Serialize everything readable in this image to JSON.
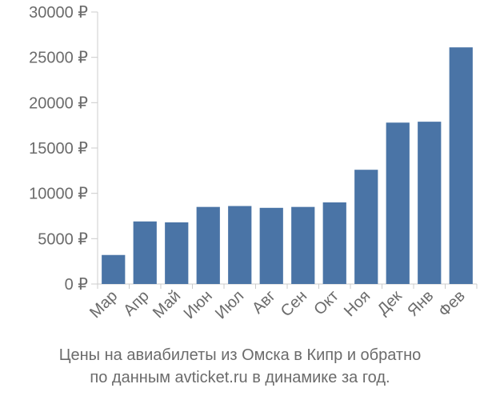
{
  "chart_data": {
    "type": "bar",
    "categories": [
      "Мар",
      "Апр",
      "Май",
      "Июн",
      "Июл",
      "Авг",
      "Сен",
      "Окт",
      "Ноя",
      "Дек",
      "Янв",
      "Фев"
    ],
    "values": [
      3200,
      6900,
      6800,
      8500,
      8600,
      8400,
      8500,
      9000,
      12600,
      17800,
      17900,
      26100
    ],
    "y_ticks": [
      "0 ₽",
      "5000 ₽",
      "10000 ₽",
      "15000 ₽",
      "20000 ₽",
      "25000 ₽",
      "30000 ₽"
    ],
    "ylim": [
      0,
      30000
    ],
    "grid": false,
    "bar_color": "#4a74a6",
    "axis_color": "#cccccc",
    "text_color": "#6b6b6b"
  },
  "caption": {
    "line1": "Цены на авиабилеты из Омска в Кипр и обратно",
    "line2": "по данным avticket.ru в динамике за год."
  }
}
